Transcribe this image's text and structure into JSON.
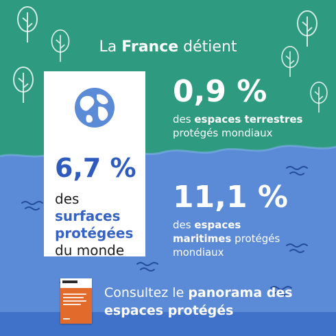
{
  "colors": {
    "green": "#2e9a7f",
    "blue_light": "#5b8ad6",
    "blue_dark": "#3f72c8",
    "card_accent": "#3563c3",
    "cover_orange": "#e26b2c"
  },
  "icons": [
    "tree-icon",
    "globe-icon",
    "wave-icon",
    "report-cover"
  ],
  "headline": {
    "prefix": "La",
    "strong": "France",
    "suffix": "détient"
  },
  "card": {
    "value": "6,7 %",
    "line_1": "des",
    "line_1_strong": "surfaces",
    "line_2_strong": "protégées",
    "line_3": "du monde"
  },
  "stat_terrestre": {
    "value": "0,9 %",
    "pre": "des",
    "strong": "espaces terrestres",
    "post": "protégés mondiaux"
  },
  "stat_maritime": {
    "value": "11,1 %",
    "pre": "des",
    "strong_1": "espaces",
    "strong_2": "maritimes",
    "post_1": "protégés",
    "post_2": "mondiaux"
  },
  "cta": {
    "text_1": "Consultez le",
    "strong_1": "panorama des",
    "strong_2": "espaces protégés"
  }
}
